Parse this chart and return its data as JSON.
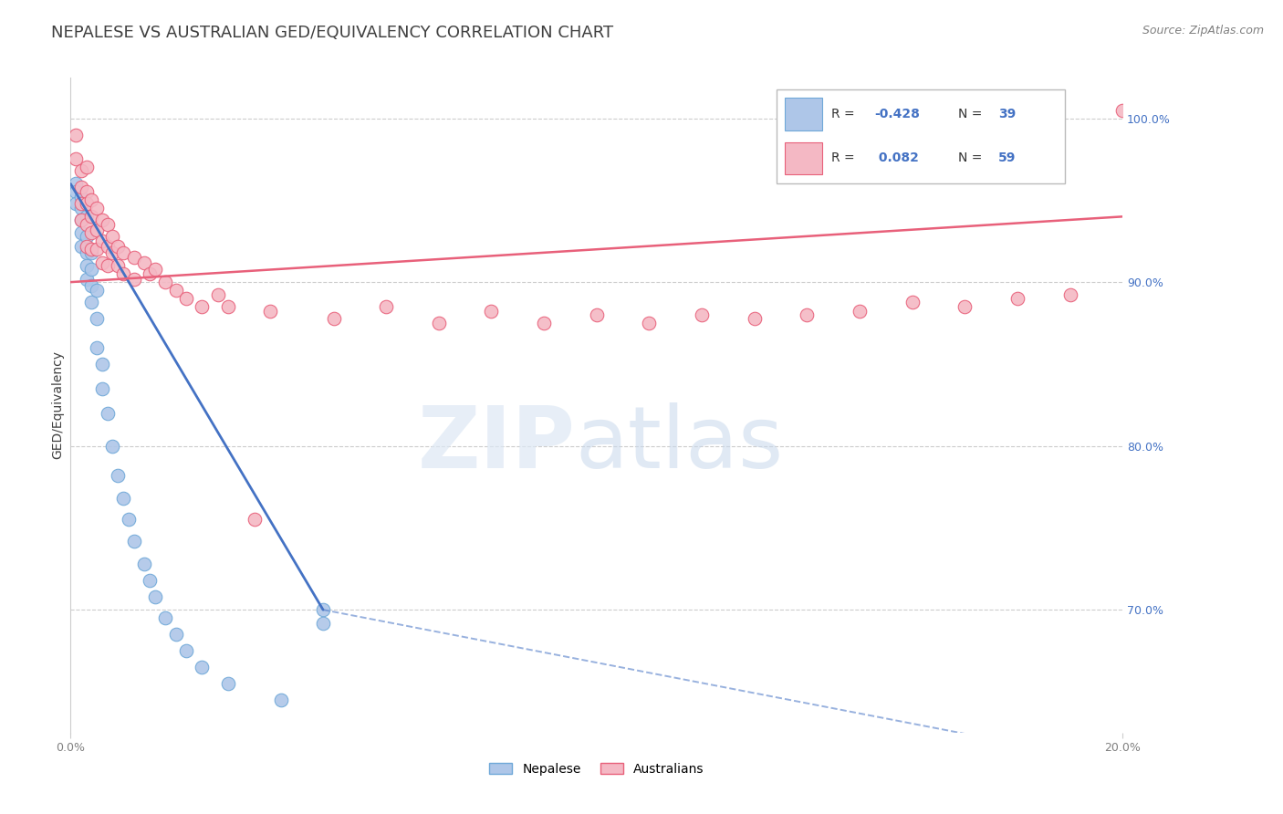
{
  "title": "NEPALESE VS AUSTRALIAN GED/EQUIVALENCY CORRELATION CHART",
  "source": "Source: ZipAtlas.com",
  "ylabel": "GED/Equivalency",
  "xlim": [
    0.0,
    0.2
  ],
  "ylim": [
    0.625,
    1.025
  ],
  "yticks": [
    0.7,
    0.8,
    0.9,
    1.0
  ],
  "ytick_labels": [
    "70.0%",
    "80.0%",
    "90.0%",
    "100.0%"
  ],
  "blue_scatter": [
    [
      0.001,
      0.96
    ],
    [
      0.001,
      0.955
    ],
    [
      0.001,
      0.948
    ],
    [
      0.002,
      0.952
    ],
    [
      0.002,
      0.945
    ],
    [
      0.002,
      0.938
    ],
    [
      0.002,
      0.93
    ],
    [
      0.002,
      0.922
    ],
    [
      0.003,
      0.94
    ],
    [
      0.003,
      0.928
    ],
    [
      0.003,
      0.918
    ],
    [
      0.003,
      0.91
    ],
    [
      0.003,
      0.902
    ],
    [
      0.004,
      0.918
    ],
    [
      0.004,
      0.908
    ],
    [
      0.004,
      0.898
    ],
    [
      0.004,
      0.888
    ],
    [
      0.005,
      0.895
    ],
    [
      0.005,
      0.878
    ],
    [
      0.005,
      0.86
    ],
    [
      0.006,
      0.85
    ],
    [
      0.006,
      0.835
    ],
    [
      0.007,
      0.82
    ],
    [
      0.008,
      0.8
    ],
    [
      0.009,
      0.782
    ],
    [
      0.01,
      0.768
    ],
    [
      0.011,
      0.755
    ],
    [
      0.012,
      0.742
    ],
    [
      0.014,
      0.728
    ],
    [
      0.015,
      0.718
    ],
    [
      0.016,
      0.708
    ],
    [
      0.018,
      0.695
    ],
    [
      0.02,
      0.685
    ],
    [
      0.022,
      0.675
    ],
    [
      0.025,
      0.665
    ],
    [
      0.03,
      0.655
    ],
    [
      0.04,
      0.645
    ],
    [
      0.048,
      0.7
    ],
    [
      0.048,
      0.692
    ]
  ],
  "pink_scatter": [
    [
      0.001,
      0.99
    ],
    [
      0.001,
      0.975
    ],
    [
      0.002,
      0.968
    ],
    [
      0.002,
      0.958
    ],
    [
      0.002,
      0.948
    ],
    [
      0.002,
      0.938
    ],
    [
      0.003,
      0.97
    ],
    [
      0.003,
      0.955
    ],
    [
      0.003,
      0.948
    ],
    [
      0.003,
      0.935
    ],
    [
      0.003,
      0.922
    ],
    [
      0.004,
      0.95
    ],
    [
      0.004,
      0.94
    ],
    [
      0.004,
      0.93
    ],
    [
      0.004,
      0.92
    ],
    [
      0.005,
      0.945
    ],
    [
      0.005,
      0.932
    ],
    [
      0.005,
      0.92
    ],
    [
      0.006,
      0.938
    ],
    [
      0.006,
      0.925
    ],
    [
      0.006,
      0.912
    ],
    [
      0.007,
      0.935
    ],
    [
      0.007,
      0.922
    ],
    [
      0.007,
      0.91
    ],
    [
      0.008,
      0.928
    ],
    [
      0.008,
      0.918
    ],
    [
      0.009,
      0.922
    ],
    [
      0.009,
      0.91
    ],
    [
      0.01,
      0.918
    ],
    [
      0.01,
      0.905
    ],
    [
      0.012,
      0.915
    ],
    [
      0.012,
      0.902
    ],
    [
      0.014,
      0.912
    ],
    [
      0.015,
      0.905
    ],
    [
      0.016,
      0.908
    ],
    [
      0.018,
      0.9
    ],
    [
      0.02,
      0.895
    ],
    [
      0.022,
      0.89
    ],
    [
      0.025,
      0.885
    ],
    [
      0.028,
      0.892
    ],
    [
      0.03,
      0.885
    ],
    [
      0.035,
      0.755
    ],
    [
      0.038,
      0.882
    ],
    [
      0.05,
      0.878
    ],
    [
      0.06,
      0.885
    ],
    [
      0.07,
      0.875
    ],
    [
      0.08,
      0.882
    ],
    [
      0.09,
      0.875
    ],
    [
      0.1,
      0.88
    ],
    [
      0.11,
      0.875
    ],
    [
      0.12,
      0.88
    ],
    [
      0.13,
      0.878
    ],
    [
      0.14,
      0.88
    ],
    [
      0.15,
      0.882
    ],
    [
      0.16,
      0.888
    ],
    [
      0.17,
      0.885
    ],
    [
      0.18,
      0.89
    ],
    [
      0.19,
      0.892
    ],
    [
      0.2,
      1.005
    ]
  ],
  "blue_line_solid": [
    [
      0.0,
      0.96
    ],
    [
      0.048,
      0.7
    ]
  ],
  "blue_line_dash": [
    [
      0.048,
      0.7
    ],
    [
      0.185,
      0.615
    ]
  ],
  "pink_line": [
    [
      0.0,
      0.9
    ],
    [
      0.2,
      0.94
    ]
  ],
  "blue_color": "#4472c4",
  "blue_scatter_face": "#aec6e8",
  "blue_scatter_edge": "#6fa8d8",
  "pink_color": "#e8607a",
  "pink_scatter_face": "#f4b8c4",
  "pink_scatter_edge": "#e8607a",
  "title_color": "#404040",
  "source_color": "#808080",
  "tick_color_y": "#4472c4",
  "tick_color_x": "#808080",
  "grid_color": "#cccccc",
  "title_fontsize": 13,
  "tick_fontsize": 9,
  "source_fontsize": 9,
  "ylabel_fontsize": 10,
  "legend_r1": "R = -0.428",
  "legend_n1": "N = 39",
  "legend_r2": "R =  0.082",
  "legend_n2": "N = 59",
  "bottom_label1": "Nepalese",
  "bottom_label2": "Australians"
}
